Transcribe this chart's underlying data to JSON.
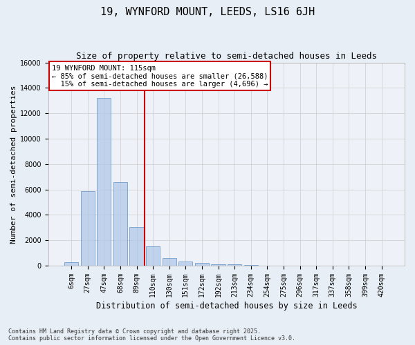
{
  "title": "19, WYNFORD MOUNT, LEEDS, LS16 6JH",
  "subtitle": "Size of property relative to semi-detached houses in Leeds",
  "xlabel": "Distribution of semi-detached houses by size in Leeds",
  "ylabel": "Number of semi-detached properties",
  "categories": [
    "6sqm",
    "27sqm",
    "47sqm",
    "68sqm",
    "89sqm",
    "110sqm",
    "130sqm",
    "151sqm",
    "172sqm",
    "192sqm",
    "213sqm",
    "234sqm",
    "254sqm",
    "275sqm",
    "296sqm",
    "317sqm",
    "337sqm",
    "358sqm",
    "399sqm",
    "420sqm"
  ],
  "values": [
    300,
    5850,
    13200,
    6600,
    3050,
    1530,
    600,
    310,
    230,
    140,
    100,
    80,
    0,
    0,
    0,
    0,
    0,
    0,
    0,
    0
  ],
  "bar_color": "#aec6e8",
  "bar_edge_color": "#5a8fc2",
  "bar_alpha": 0.7,
  "vline_x": 4.5,
  "vline_color": "#cc0000",
  "annotation_text": "19 WYNFORD MOUNT: 115sqm\n← 85% of semi-detached houses are smaller (26,588)\n  15% of semi-detached houses are larger (4,696) →",
  "annotation_box_color": "#ffffff",
  "annotation_box_edge": "#cc0000",
  "ylim": [
    0,
    16000
  ],
  "yticks": [
    0,
    2000,
    4000,
    6000,
    8000,
    10000,
    12000,
    14000,
    16000
  ],
  "grid_color": "#cccccc",
  "background_color": "#e8eef5",
  "plot_bg_color": "#eef2f8",
  "footer_text": "Contains HM Land Registry data © Crown copyright and database right 2025.\nContains public sector information licensed under the Open Government Licence v3.0.",
  "title_fontsize": 11,
  "subtitle_fontsize": 9,
  "xlabel_fontsize": 8.5,
  "ylabel_fontsize": 8,
  "tick_fontsize": 7,
  "annotation_fontsize": 7.5,
  "footer_fontsize": 6
}
